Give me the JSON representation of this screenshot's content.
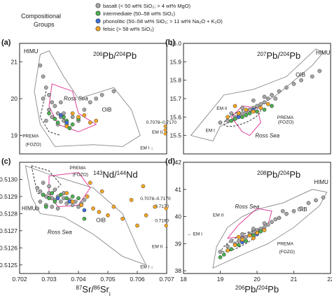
{
  "legend": {
    "title_line1": "Compositional",
    "title_line2": "Groups",
    "items": [
      {
        "label": "basalt (< 50 wt% SiO₂; > 4 wt% MgO)",
        "color": "#a6a6a6"
      },
      {
        "label": "intermediate (50–58 wt% SiO₂)",
        "color": "#4caf50"
      },
      {
        "label": "phonolitic (50–58 wt% SiO₂; > 11 wt% Na₂O + K₂O)",
        "color": "#3f6fd8"
      },
      {
        "label": "felsic (> 58 wt% SiO₂)",
        "color": "#f5a623"
      }
    ]
  },
  "shared_axes": {
    "sr_xlabel": "87Sr/86Sri",
    "pb_xlabel": "206Pb/204Pb"
  },
  "chart_data": [
    {
      "panel": "a",
      "type": "scatter",
      "ylabel": "206Pb/204Pb",
      "xlim": [
        0.702,
        0.707
      ],
      "ylim": [
        18.5,
        21.5
      ],
      "yticks": [
        "19",
        "20",
        "21"
      ],
      "labels": {
        "himu": "HIMU",
        "oib": "OIB",
        "ross_sea": "Ross Sea",
        "prema": "PREMA",
        "fozo": "(FOZO)",
        "em1": "EM I",
        "em2": "EM II",
        "range": "0.7078–0.7170"
      },
      "series": [
        {
          "name": "basalt",
          "points": [
            [
              0.7027,
              20.9
            ],
            [
              0.7028,
              20.6
            ],
            [
              0.7029,
              20.3
            ],
            [
              0.703,
              20.1
            ],
            [
              0.7031,
              19.9
            ],
            [
              0.7032,
              19.8
            ],
            [
              0.7033,
              19.6
            ],
            [
              0.7034,
              19.5
            ],
            [
              0.7035,
              19.4
            ],
            [
              0.7036,
              19.3
            ],
            [
              0.7028,
              20.0
            ],
            [
              0.703,
              19.7
            ],
            [
              0.7031,
              19.5
            ],
            [
              0.7033,
              19.3
            ],
            [
              0.7035,
              19.6
            ],
            [
              0.7037,
              19.2
            ],
            [
              0.7038,
              19.5
            ],
            [
              0.704,
              19.4
            ],
            [
              0.7042,
              19.7
            ],
            [
              0.7044,
              19.9
            ],
            [
              0.7046,
              20.0
            ],
            [
              0.7048,
              20.1
            ],
            [
              0.7052,
              20.2
            ],
            [
              0.7034,
              19.9
            ],
            [
              0.7029,
              19.4
            ]
          ]
        },
        {
          "name": "intermediate",
          "points": [
            [
              0.703,
              19.6
            ],
            [
              0.7032,
              19.45
            ],
            [
              0.7033,
              19.35
            ],
            [
              0.7035,
              19.5
            ],
            [
              0.7036,
              19.4
            ],
            [
              0.7037,
              19.2
            ],
            [
              0.7038,
              19.3
            ],
            [
              0.704,
              19.45
            ]
          ]
        },
        {
          "name": "phonolitic",
          "points": [
            [
              0.7034,
              19.55
            ],
            [
              0.7036,
              19.35
            ]
          ]
        },
        {
          "name": "felsic",
          "points": [
            [
              0.7038,
              19.6
            ],
            [
              0.704,
              19.5
            ],
            [
              0.7042,
              19.55
            ],
            [
              0.7044,
              19.35
            ],
            [
              0.7046,
              19.4
            ],
            [
              0.7036,
              19.25
            ]
          ]
        }
      ]
    },
    {
      "panel": "b",
      "type": "scatter",
      "ylabel": "207Pb/204Pb",
      "xlim": [
        18,
        22
      ],
      "ylim": [
        15.4,
        16.0
      ],
      "yticks": [
        "15.5",
        "15.6",
        "15.7",
        "15.8",
        "15.9",
        "16.0"
      ],
      "labels": {
        "himu": "HIMU",
        "oib": "OIB",
        "ross_sea": "Ross Sea",
        "prema": "PREMA",
        "fozo": "(FOZO)",
        "em1": "EM I",
        "em2": "EM II"
      },
      "series": [
        {
          "name": "basalt",
          "points": [
            [
              19.0,
              15.57
            ],
            [
              19.2,
              15.58
            ],
            [
              19.4,
              15.6
            ],
            [
              19.5,
              15.61
            ],
            [
              19.6,
              15.62
            ],
            [
              19.7,
              15.63
            ],
            [
              19.8,
              15.64
            ],
            [
              19.9,
              15.65
            ],
            [
              20.0,
              15.66
            ],
            [
              20.1,
              15.67
            ],
            [
              20.2,
              15.68
            ],
            [
              20.3,
              15.7
            ],
            [
              20.4,
              15.72
            ],
            [
              20.6,
              15.74
            ],
            [
              20.8,
              15.76
            ],
            [
              21.0,
              15.78
            ],
            [
              21.2,
              15.8
            ],
            [
              19.3,
              15.62
            ],
            [
              19.6,
              15.65
            ],
            [
              19.9,
              15.69
            ],
            [
              20.2,
              15.71
            ],
            [
              20.5,
              15.7
            ],
            [
              21.5,
              15.82
            ],
            [
              21.7,
              15.85
            ]
          ]
        },
        {
          "name": "intermediate",
          "points": [
            [
              19.4,
              15.59
            ],
            [
              19.6,
              15.6
            ],
            [
              19.7,
              15.61
            ],
            [
              19.8,
              15.62
            ],
            [
              20.0,
              15.63
            ],
            [
              20.2,
              15.64
            ],
            [
              19.3,
              15.58
            ],
            [
              20.4,
              15.66
            ]
          ]
        },
        {
          "name": "phonolitic",
          "points": [
            [
              19.5,
              15.6
            ],
            [
              19.9,
              15.64
            ]
          ]
        },
        {
          "name": "felsic",
          "points": [
            [
              19.2,
              15.6
            ],
            [
              19.5,
              15.62
            ],
            [
              19.7,
              15.64
            ],
            [
              19.9,
              15.63
            ],
            [
              20.1,
              15.65
            ],
            [
              20.3,
              15.67
            ],
            [
              19.4,
              15.66
            ]
          ]
        }
      ]
    },
    {
      "panel": "c",
      "type": "scatter",
      "ylabel": "143Nd/144Nd",
      "xlim": [
        0.702,
        0.707
      ],
      "ylim": [
        0.51245,
        0.5131
      ],
      "yticks": [
        "0.5125",
        "0.5126",
        "0.5127",
        "0.5128",
        "0.5129",
        "0.5130"
      ],
      "xticks": [
        "0.702",
        "0.703",
        "0.704",
        "0.705",
        "0.706",
        "0.707"
      ],
      "labels": {
        "himu": "HIMU",
        "oib": "OIB",
        "ross_sea": "Ross Sea",
        "prema": "PREMA",
        "fozo": "(FOZO)",
        "em1": "EM I",
        "em2": "EM II",
        "range1": "0.7078–0.7170",
        "range1b": "0.7170",
        "range2": "0.7190"
      },
      "series": [
        {
          "name": "basalt",
          "points": [
            [
              0.7026,
              0.51295
            ],
            [
              0.7027,
              0.51293
            ],
            [
              0.7028,
              0.51291
            ],
            [
              0.7029,
              0.5129
            ],
            [
              0.703,
              0.51292
            ],
            [
              0.7031,
              0.51289
            ],
            [
              0.7032,
              0.51288
            ],
            [
              0.7033,
              0.5129
            ],
            [
              0.7034,
              0.51287
            ],
            [
              0.7035,
              0.51289
            ],
            [
              0.7036,
              0.51286
            ],
            [
              0.7037,
              0.51288
            ],
            [
              0.7038,
              0.51285
            ],
            [
              0.7039,
              0.51287
            ],
            [
              0.704,
              0.51284
            ],
            [
              0.7041,
              0.51286
            ],
            [
              0.7027,
              0.51287
            ],
            [
              0.7029,
              0.51285
            ],
            [
              0.7031,
              0.51284
            ],
            [
              0.7033,
              0.51283
            ],
            [
              0.7028,
              0.51298
            ],
            [
              0.703,
              0.51296
            ],
            [
              0.7032,
              0.51294
            ],
            [
              0.7042,
              0.51288
            ],
            [
              0.7035,
              0.51292
            ],
            [
              0.7026,
              0.51283
            ]
          ]
        },
        {
          "name": "intermediate",
          "points": [
            [
              0.7028,
              0.51291
            ],
            [
              0.703,
              0.51289
            ],
            [
              0.7032,
              0.51287
            ],
            [
              0.7034,
              0.51291
            ],
            [
              0.7036,
              0.51289
            ],
            [
              0.7038,
              0.5129
            ],
            [
              0.704,
              0.51289
            ],
            [
              0.7042,
              0.51277
            ],
            [
              0.7029,
              0.51284
            ],
            [
              0.7031,
              0.51292
            ]
          ]
        },
        {
          "name": "phonolitic",
          "points": [
            [
              0.7033,
              0.51289
            ],
            [
              0.7037,
              0.51287
            ],
            [
              0.7042,
              0.51282
            ]
          ]
        },
        {
          "name": "felsic",
          "points": [
            [
              0.7036,
              0.51292
            ],
            [
              0.7038,
              0.51287
            ],
            [
              0.7041,
              0.51285
            ],
            [
              0.7043,
              0.5129
            ],
            [
              0.7045,
              0.51283
            ],
            [
              0.7047,
              0.51281
            ],
            [
              0.705,
              0.51279
            ],
            [
              0.7052,
              0.51284
            ],
            [
              0.7055,
              0.51277
            ],
            [
              0.7058,
              0.51288
            ],
            [
              0.7062,
              0.51296
            ],
            [
              0.7066,
              0.51284
            ],
            [
              0.7063,
              0.51279
            ],
            [
              0.706,
              0.51273
            ],
            [
              0.7048,
              0.51293
            ],
            [
              0.7044,
              0.51298
            ]
          ]
        }
      ]
    },
    {
      "panel": "d",
      "type": "scatter",
      "ylabel": "208Pb/204Pb",
      "xlim": [
        18,
        22
      ],
      "ylim": [
        37.9,
        42
      ],
      "yticks": [
        "38",
        "39",
        "40",
        "41",
        "42"
      ],
      "xticks": [
        "18",
        "19",
        "20",
        "21",
        "22"
      ],
      "labels": {
        "himu": "HIMU",
        "oib": "OIB",
        "ross_sea": "Ross Sea",
        "prema": "PREMA",
        "fozo": "(FOZO)",
        "em1": "EM I",
        "em2": "EM II"
      },
      "series": [
        {
          "name": "basalt",
          "points": [
            [
              19.0,
              38.7
            ],
            [
              19.2,
              38.9
            ],
            [
              19.4,
              39.0
            ],
            [
              19.5,
              39.1
            ],
            [
              19.6,
              39.2
            ],
            [
              19.7,
              39.25
            ],
            [
              19.8,
              39.35
            ],
            [
              19.9,
              39.4
            ],
            [
              20.0,
              39.5
            ],
            [
              20.1,
              39.55
            ],
            [
              20.2,
              39.6
            ],
            [
              20.3,
              39.7
            ],
            [
              20.4,
              39.8
            ],
            [
              20.6,
              39.95
            ],
            [
              20.8,
              40.1
            ],
            [
              21.0,
              40.2
            ],
            [
              19.3,
              39.1
            ],
            [
              19.6,
              39.35
            ],
            [
              19.9,
              39.55
            ],
            [
              20.2,
              39.75
            ],
            [
              20.5,
              39.9
            ],
            [
              20.7,
              40.2
            ],
            [
              21.2,
              40.3
            ],
            [
              21.4,
              40.5
            ],
            [
              21.6,
              40.6
            ],
            [
              21.8,
              40.7
            ]
          ]
        },
        {
          "name": "intermediate",
          "points": [
            [
              19.1,
              38.6
            ],
            [
              19.3,
              38.8
            ],
            [
              19.5,
              38.95
            ],
            [
              19.7,
              39.1
            ],
            [
              19.9,
              39.3
            ],
            [
              20.1,
              39.45
            ],
            [
              19.0,
              38.5
            ]
          ]
        },
        {
          "name": "phonolitic",
          "points": [
            [
              19.6,
              39.05
            ],
            [
              20.0,
              39.35
            ]
          ]
        },
        {
          "name": "felsic",
          "points": [
            [
              19.2,
              38.75
            ],
            [
              19.4,
              38.95
            ],
            [
              19.6,
              39.15
            ],
            [
              19.8,
              39.3
            ],
            [
              20.0,
              39.4
            ],
            [
              20.2,
              39.5
            ],
            [
              19.9,
              39.2
            ],
            [
              19.5,
              39.25
            ]
          ]
        }
      ]
    }
  ]
}
